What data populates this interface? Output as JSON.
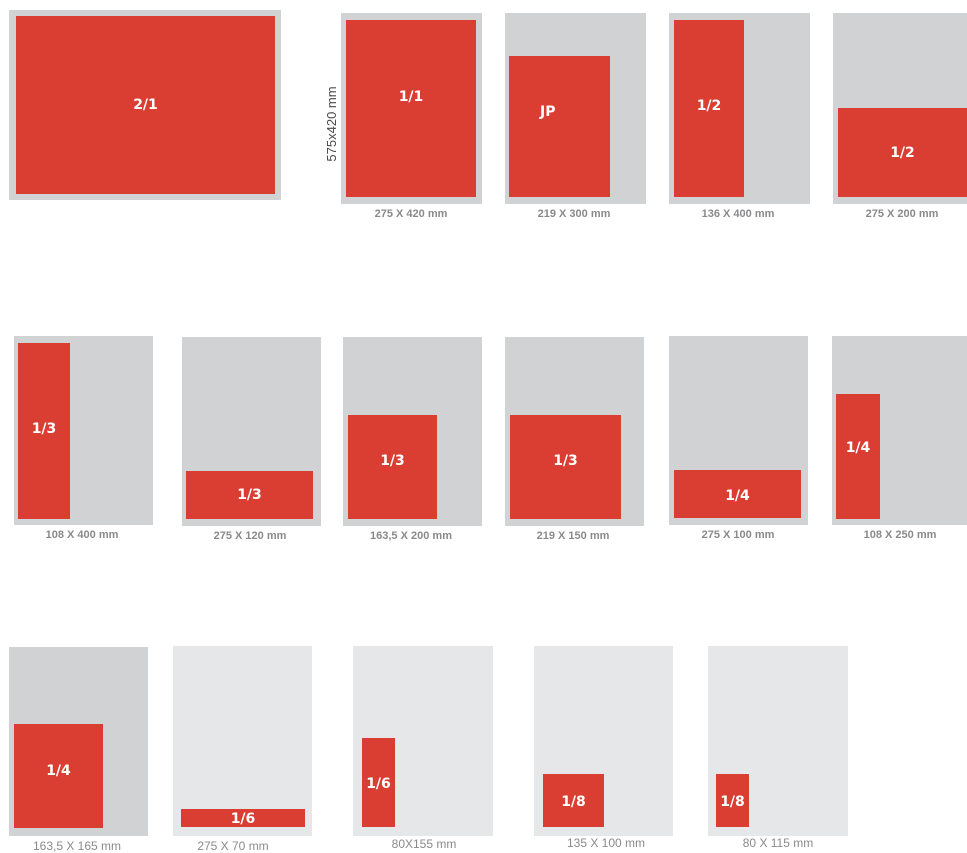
{
  "colors": {
    "ad_red": "#da3e32",
    "page_grey": "#d1d2d4",
    "page_light": "#e6e7e8",
    "caption": "#8a8a8c"
  },
  "formats": [
    {
      "id": "double-page",
      "label": "2/1",
      "size_vertical": "575x420 mm"
    },
    {
      "id": "full-page",
      "label": "1/1",
      "size": "275 X 420 mm"
    },
    {
      "id": "jp",
      "label": "JP",
      "size": "219 X 300 mm"
    },
    {
      "id": "half-vertical",
      "label": "1/2",
      "size": "136 X 400 mm"
    },
    {
      "id": "half-horizontal",
      "label": "1/2",
      "size": "275 X 200 mm"
    },
    {
      "id": "third-vertical",
      "label": "1/3",
      "size": "108 X 400 mm"
    },
    {
      "id": "third-horizontal",
      "label": "1/3",
      "size": "275 X 120 mm"
    },
    {
      "id": "third-block",
      "label": "1/3",
      "size": "163,5 X 200 mm"
    },
    {
      "id": "third-wide",
      "label": "1/3",
      "size": "219 X 150 mm"
    },
    {
      "id": "quarter-horizontal",
      "label": "1/4",
      "size": "275 X 100 mm"
    },
    {
      "id": "quarter-vertical",
      "label": "1/4",
      "size": "108 X 250 mm"
    },
    {
      "id": "quarter-block",
      "label": "1/4",
      "size": "163,5 X 165 mm"
    },
    {
      "id": "sixth-horizontal",
      "label": "1/6",
      "size": "275 X 70 mm"
    },
    {
      "id": "sixth-vertical",
      "label": "1/6",
      "size": "80X155 mm"
    },
    {
      "id": "eighth-horizontal",
      "label": "1/8",
      "size": "135 X 100 mm"
    },
    {
      "id": "eighth-vertical",
      "label": "1/8",
      "size": "80 X 115 mm"
    }
  ]
}
